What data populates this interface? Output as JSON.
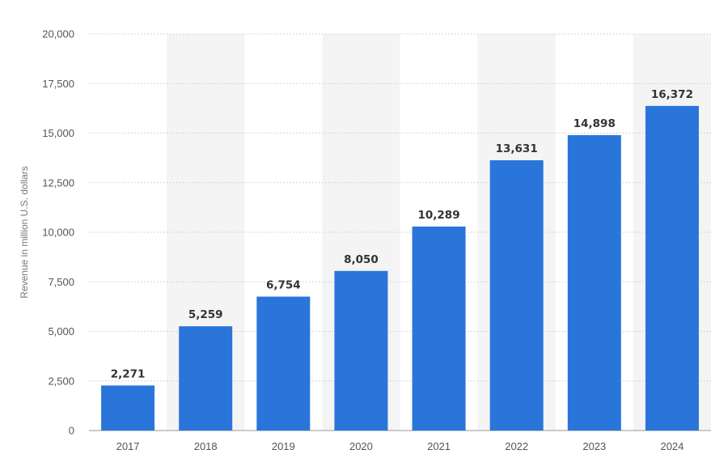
{
  "chart_data": {
    "type": "bar",
    "categories": [
      "2017",
      "2018",
      "2019",
      "2020",
      "2021",
      "2022",
      "2023",
      "2024"
    ],
    "values": [
      2271,
      5259,
      6754,
      8050,
      10289,
      13631,
      14898,
      16372
    ],
    "value_labels": [
      "2,271",
      "5,259",
      "6,754",
      "8,050",
      "10,289",
      "13,631",
      "14,898",
      "16,372"
    ],
    "title": "",
    "xlabel": "",
    "ylabel": "Revenue in million U.S. dollars",
    "ylim": [
      0,
      20000
    ],
    "yticks": [
      0,
      2500,
      5000,
      7500,
      10000,
      12500,
      15000,
      17500,
      20000
    ],
    "ytick_labels": [
      "0",
      "2,500",
      "5,000",
      "7,500",
      "10,000",
      "12,500",
      "15,000",
      "17,500",
      "20,000"
    ],
    "grid": true,
    "legend": "none",
    "colors": {
      "bar": "#2a75da",
      "band": "#f4f4f4",
      "grid": "#c8c8c8"
    }
  }
}
